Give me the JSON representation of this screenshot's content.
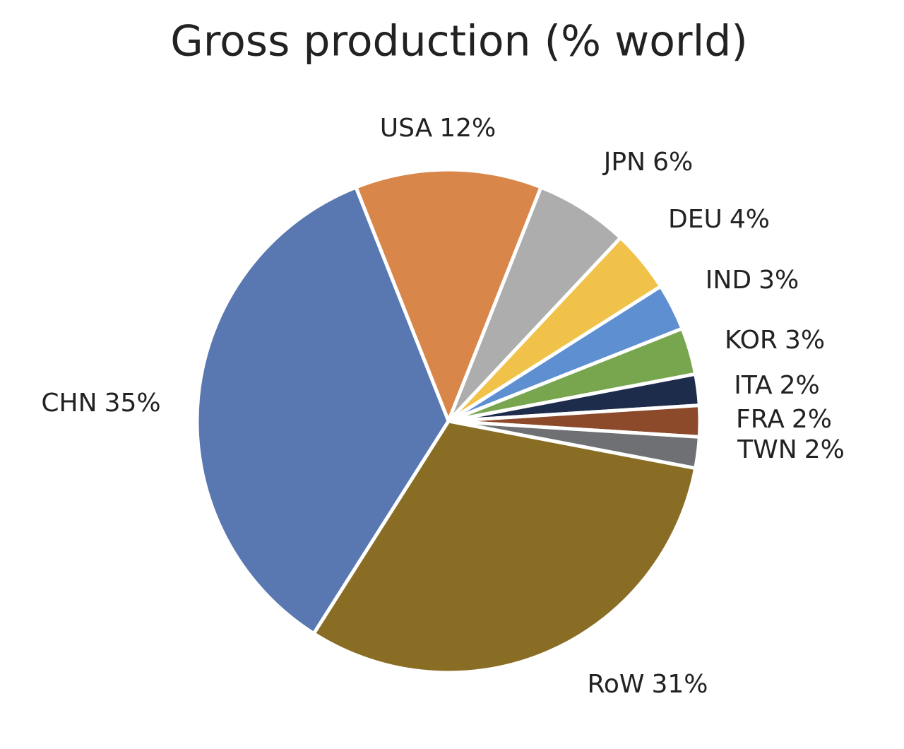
{
  "chart_data": {
    "type": "pie",
    "title": "Gross production  (% world)",
    "categories": [
      "USA",
      "JPN",
      "DEU",
      "IND",
      "KOR",
      "ITA",
      "FRA",
      "TWN",
      "RoW",
      "CHN"
    ],
    "values": [
      12,
      6,
      4,
      3,
      3,
      2,
      2,
      2,
      31,
      35
    ],
    "value_labels": [
      "12%",
      "6%",
      "4%",
      "3%",
      "3%",
      "2%",
      "2%",
      "2%",
      "31%",
      "35%"
    ],
    "colors": [
      "#d9864b",
      "#adadad",
      "#f0c24a",
      "#5d8fd1",
      "#78a64f",
      "#1e2c4c",
      "#8c4a2a",
      "#6f7073",
      "#8a6d25",
      "#5977b0"
    ]
  }
}
